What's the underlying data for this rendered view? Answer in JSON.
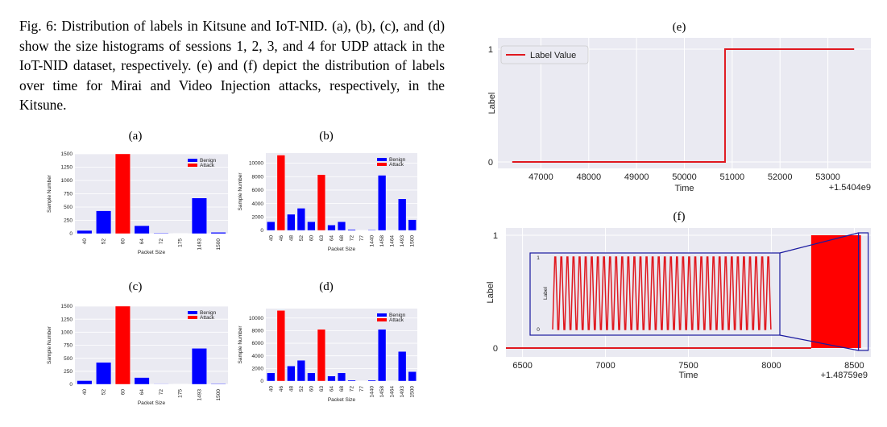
{
  "caption": "Fig. 6: Distribution of labels in Kitsune and IoT-NID. (a), (b), (c), and (d) show the size histograms of sessions 1, 2, 3, and 4 for UDP attack in the IoT-NID dataset, respectively. (e) and (f) depict the distribution of labels over time for Mirai and Video Injection attacks, respectively, in the Kitsune.",
  "colors": {
    "benign": "#0000ff",
    "attack": "#ff0000",
    "plot_bg": "#eaeaf2",
    "grid": "#ffffff",
    "line": "#e0181f"
  },
  "chart_data": [
    {
      "id": "a",
      "panel_label": "(a)",
      "type": "bar",
      "xlabel": "Packet Size",
      "ylabel": "Sample Number",
      "categories": [
        "40",
        "52",
        "60",
        "64",
        "72",
        "175",
        "1493",
        "1500"
      ],
      "yticks": [
        0,
        250,
        500,
        750,
        1000,
        1250,
        1500
      ],
      "ylim": [
        0,
        1500
      ],
      "legend": [
        "Benign",
        "Attack"
      ],
      "legend_position": "top-right",
      "values": [
        60,
        430,
        1500,
        150,
        12,
        6,
        670,
        25
      ],
      "series_of_bar": [
        "Benign",
        "Benign",
        "Attack",
        "Benign",
        "Benign",
        "Benign",
        "Benign",
        "Benign"
      ]
    },
    {
      "id": "b",
      "panel_label": "(b)",
      "type": "bar",
      "xlabel": "Packet Size",
      "ylabel": "Sample Number",
      "categories": [
        "40",
        "46",
        "48",
        "52",
        "60",
        "63",
        "64",
        "68",
        "72",
        "77",
        "1440",
        "1458",
        "1464",
        "1493",
        "1500"
      ],
      "yticks": [
        0,
        2000,
        4000,
        6000,
        8000,
        10000
      ],
      "ylim": [
        0,
        11500
      ],
      "legend": [
        "Benign",
        "Attack"
      ],
      "legend_position": "top-right",
      "values": [
        1300,
        11200,
        2400,
        3300,
        1300,
        8300,
        800,
        1300,
        150,
        50,
        100,
        8200,
        50,
        4700,
        1600
      ],
      "series_of_bar": [
        "Benign",
        "Attack",
        "Benign",
        "Benign",
        "Benign",
        "Attack",
        "Benign",
        "Benign",
        "Benign",
        "Benign",
        "Benign",
        "Benign",
        "Benign",
        "Benign",
        "Benign"
      ]
    },
    {
      "id": "c",
      "panel_label": "(c)",
      "type": "bar",
      "xlabel": "Packet Size",
      "ylabel": "Sample Number",
      "categories": [
        "40",
        "52",
        "60",
        "64",
        "72",
        "175",
        "1493",
        "1500"
      ],
      "yticks": [
        0,
        250,
        500,
        750,
        1000,
        1250,
        1500
      ],
      "ylim": [
        0,
        1500
      ],
      "legend": [
        "Benign",
        "Attack"
      ],
      "legend_position": "top-right",
      "values": [
        70,
        420,
        1500,
        130,
        8,
        5,
        690,
        12
      ],
      "series_of_bar": [
        "Benign",
        "Benign",
        "Attack",
        "Benign",
        "Benign",
        "Benign",
        "Benign",
        "Benign"
      ]
    },
    {
      "id": "d",
      "panel_label": "(d)",
      "type": "bar",
      "xlabel": "Packet Size",
      "ylabel": "Sample Number",
      "categories": [
        "40",
        "46",
        "48",
        "52",
        "60",
        "63",
        "64",
        "68",
        "72",
        "77",
        "1440",
        "1458",
        "1464",
        "1493",
        "1500"
      ],
      "yticks": [
        0,
        2000,
        4000,
        6000,
        8000,
        10000
      ],
      "ylim": [
        0,
        11500
      ],
      "legend": [
        "Benign",
        "Attack"
      ],
      "legend_position": "top-right",
      "values": [
        1300,
        11200,
        2400,
        3300,
        1300,
        8200,
        800,
        1300,
        150,
        50,
        150,
        8200,
        50,
        4700,
        1500
      ],
      "series_of_bar": [
        "Benign",
        "Attack",
        "Benign",
        "Benign",
        "Benign",
        "Attack",
        "Benign",
        "Benign",
        "Benign",
        "Benign",
        "Benign",
        "Benign",
        "Benign",
        "Benign",
        "Benign"
      ]
    },
    {
      "id": "e",
      "panel_label": "(e)",
      "type": "line",
      "xlabel": "Time",
      "ylabel": "Label",
      "offset_text": "+1.5404e9",
      "xticks": [
        47000,
        48000,
        49000,
        50000,
        51000,
        52000,
        53000
      ],
      "xlim": [
        46100,
        53900
      ],
      "yticks": [
        0,
        1
      ],
      "ylim": [
        -0.05,
        1.05
      ],
      "legend": [
        "Label Value"
      ],
      "legend_position": "top-left",
      "series": [
        {
          "name": "Label Value",
          "x": [
            46400,
            50850,
            50850,
            53550
          ],
          "y": [
            0,
            0,
            1,
            1
          ]
        }
      ]
    },
    {
      "id": "f",
      "panel_label": "(f)",
      "type": "line",
      "xlabel": "Time",
      "ylabel": "Label",
      "offset_text": "+1.48759e9",
      "xticks": [
        6500,
        7000,
        7500,
        8000,
        8500
      ],
      "xlim": [
        6400,
        8600
      ],
      "yticks": [
        0,
        1
      ],
      "ylim": [
        -0.05,
        1.05
      ],
      "series": [
        {
          "name": "Label Value",
          "baseline": {
            "x": [
              6400,
              8240
            ],
            "y": [
              0,
              0
            ]
          },
          "dense_region": [
            8240,
            8540
          ]
        }
      ],
      "inset": {
        "yticks": [
          0,
          1
        ],
        "ylabel": "Label",
        "cycles": 36
      }
    }
  ]
}
